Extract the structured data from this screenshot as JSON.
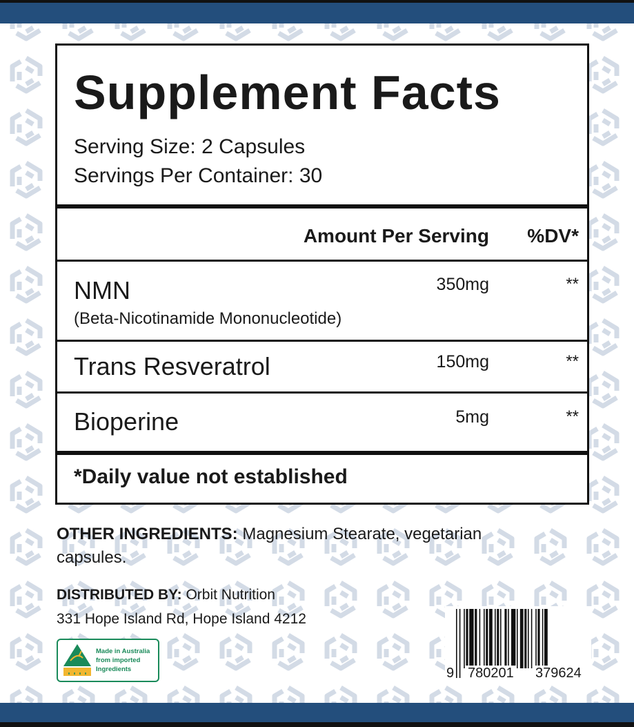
{
  "colors": {
    "band": "#234e7c",
    "pattern": "#d3dbe6",
    "logo_green": "#1a8a5a",
    "logo_gold": "#f2b630"
  },
  "facts": {
    "title": "Supplement Facts",
    "serving_size": "Serving Size: 2 Capsules",
    "servings_per_container": "Servings Per Container: 30",
    "header_amount": "Amount Per Serving",
    "header_dv": "%DV*",
    "rows": [
      {
        "name": "NMN",
        "sub": "(Beta-Nicotinamide Mononucleotide)",
        "amount": "350mg",
        "dv": "**"
      },
      {
        "name": "Trans Resveratrol",
        "amount": "150mg",
        "dv": "**"
      },
      {
        "name": "Bioperine",
        "amount": "5mg",
        "dv": "**"
      }
    ],
    "footnote": "*Daily value not established"
  },
  "other": {
    "label": "OTHER INGREDIENTS:",
    "text_line1": " Magnesium Stearate, vegetarian",
    "text_line2": "capsules."
  },
  "distributor": {
    "label": "DISTRIBUTED BY:",
    "name": " Orbit Nutrition",
    "address": "331 Hope Island Rd, Hope Island 4212"
  },
  "logo": {
    "line1": "Made in Australia",
    "line2": "from imported",
    "line3": "Ingredients",
    "icon": "kangaroo-triangle-icon"
  },
  "barcode": {
    "first": "9",
    "left": "780201",
    "right": "379624"
  }
}
